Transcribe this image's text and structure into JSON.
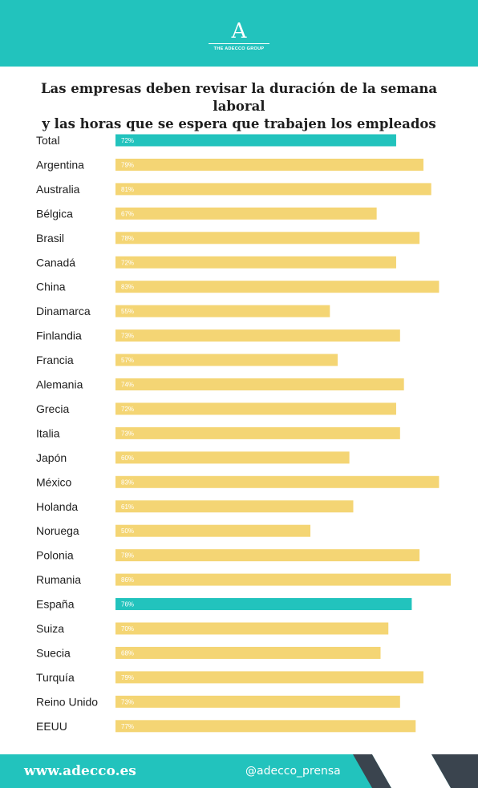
{
  "header": {
    "logo_mark": "A",
    "logo_text": "THE ADECCO GROUP"
  },
  "title_line1": "Las empresas deben revisar la duración de la semana laboral",
  "title_line2": "y las horas que se espera que trabajen los empleados",
  "colors": {
    "teal": "#22c3bd",
    "yellow": "#f4d574",
    "dark": "#3a444e",
    "text": "#1e1e1e"
  },
  "chart_data": {
    "type": "bar",
    "orientation": "horizontal",
    "categories": [
      "Total",
      "Argentina",
      "Australia",
      "Bélgica",
      "Brasil",
      "Canadá",
      "China",
      "Dinamarca",
      "Finlandia",
      "Francia",
      "Alemania",
      "Grecia",
      "Italia",
      "Japón",
      "México",
      "Holanda",
      "Noruega",
      "Polonia",
      "Rumania",
      "España",
      "Suiza",
      "Suecia",
      "Turquía",
      "Reino Unido",
      "EEUU"
    ],
    "values": [
      72,
      79,
      81,
      67,
      78,
      72,
      83,
      55,
      73,
      57,
      74,
      72,
      73,
      60,
      83,
      61,
      50,
      78,
      86,
      76,
      70,
      68,
      79,
      73,
      77
    ],
    "value_labels": [
      "72%",
      "79%",
      "81%",
      "67%",
      "78%",
      "72%",
      "83%",
      "55%",
      "73%",
      "57%",
      "74%",
      "72%",
      "73%",
      "60%",
      "83%",
      "61%",
      "50%",
      "78%",
      "86%",
      "76%",
      "70%",
      "68%",
      "79%",
      "73%",
      "77%"
    ],
    "highlighted": [
      "Total",
      "España"
    ],
    "xlim": [
      0,
      86
    ],
    "grid": false,
    "legend": "none"
  },
  "footer": {
    "website": "www.adecco.es",
    "handle": "@adecco_prensa"
  }
}
